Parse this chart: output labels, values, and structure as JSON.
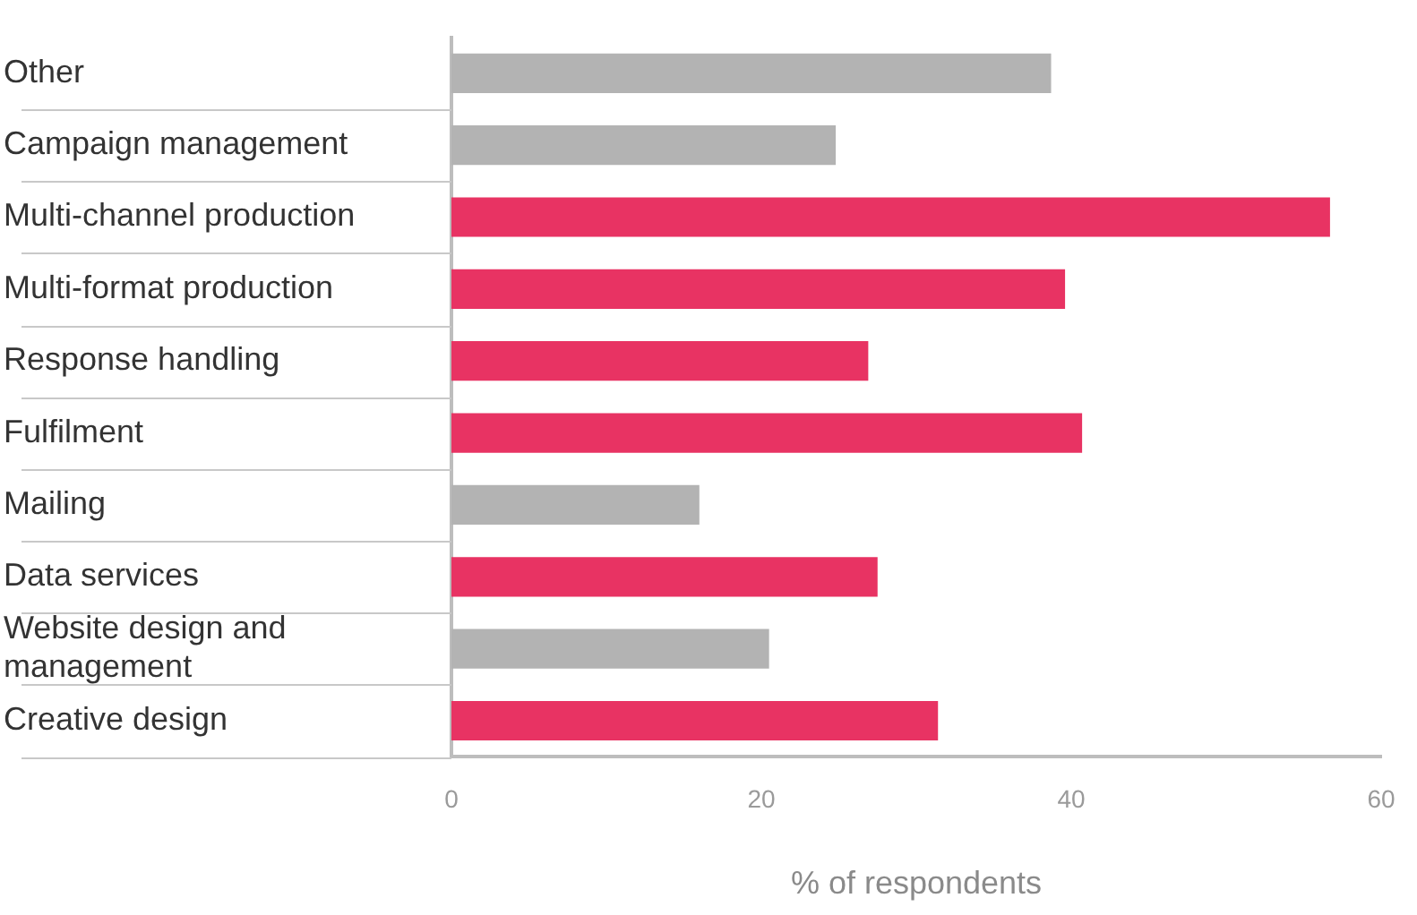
{
  "chart_data": {
    "type": "bar",
    "orientation": "horizontal",
    "xlabel": "% of respondents",
    "categories": [
      "Other",
      "Campaign management",
      "Multi-channel production",
      "Multi-format production",
      "Response handling",
      "Fulfilment",
      "Mailing",
      "Data services",
      "Website design and management",
      "Creative design"
    ],
    "values": [
      38.7,
      24.8,
      56.7,
      39.6,
      26.9,
      40.7,
      16.0,
      27.5,
      20.5,
      31.4
    ],
    "colors": [
      "#b3b3b3",
      "#b3b3b3",
      "#e83363",
      "#e83363",
      "#e83363",
      "#e83363",
      "#b3b3b3",
      "#e83363",
      "#b3b3b3",
      "#e83363"
    ],
    "xlim": [
      0,
      60
    ],
    "xticks": [
      0,
      20,
      40,
      60
    ],
    "grid": false,
    "legend": false
  }
}
